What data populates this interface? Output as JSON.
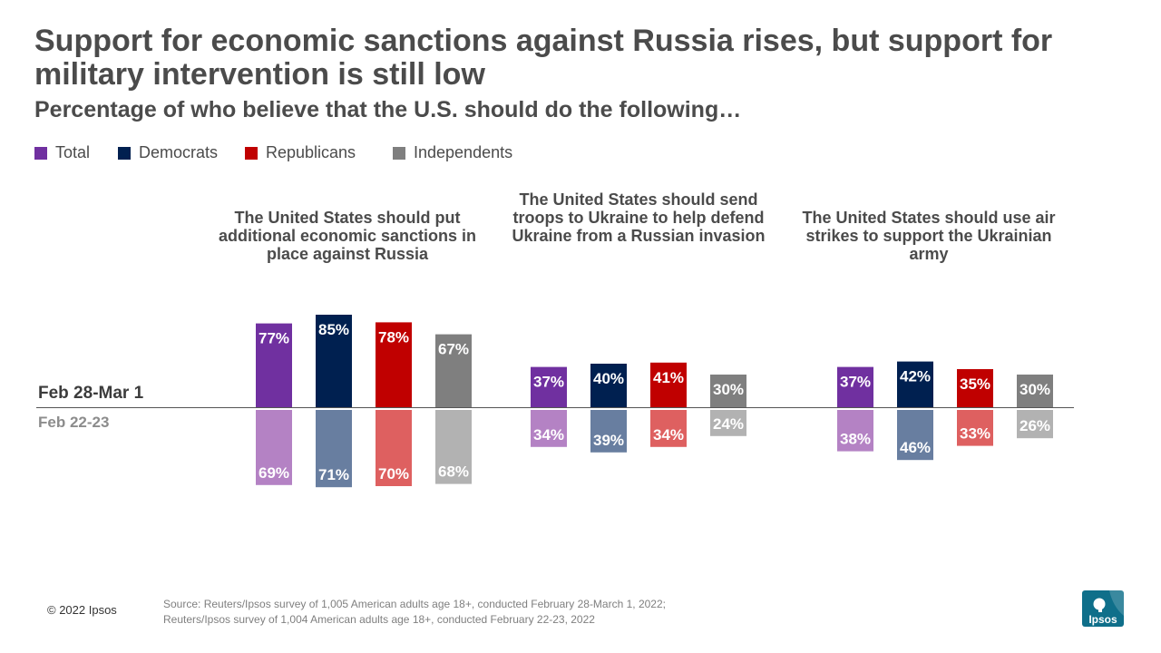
{
  "title": "Support for economic sanctions against Russia rises, but support for military intervention is still low",
  "subtitle": "Percentage of who believe that the U.S. should do the following…",
  "legend": [
    {
      "label": "Total",
      "color": "#7030a0"
    },
    {
      "label": "Democrats",
      "color": "#002050"
    },
    {
      "label": "Republicans",
      "color": "#c00000"
    },
    {
      "label": "Independents",
      "color": "#7f7f7f"
    }
  ],
  "periods": {
    "current": "Feb 28-Mar 1",
    "previous": "Feb 22-23"
  },
  "chart_data": {
    "type": "bar",
    "title": "Support for economic sanctions against Russia rises, but support for military intervention is still low",
    "subtitle": "Percentage of who believe that the U.S. should do the following…",
    "value_suffix": "%",
    "series_names": [
      "Total",
      "Democrats",
      "Republicans",
      "Independents"
    ],
    "colors_current": [
      "#7030a0",
      "#002050",
      "#c00000",
      "#7f7f7f"
    ],
    "colors_previous": [
      "#b482c4",
      "#687ea0",
      "#de6060",
      "#b2b2b2"
    ],
    "groups": [
      {
        "label": "The United States should put additional economic sanctions in place against Russia",
        "current": [
          77,
          85,
          78,
          67
        ],
        "previous": [
          69,
          71,
          70,
          68
        ]
      },
      {
        "label": "The United States should send troops to Ukraine to help defend Ukraine from a Russian invasion",
        "current": [
          37,
          40,
          41,
          30
        ],
        "previous": [
          34,
          39,
          34,
          24
        ]
      },
      {
        "label": "The United States should use air strikes to support the Ukrainian army",
        "current": [
          37,
          42,
          35,
          30
        ],
        "previous": [
          38,
          46,
          33,
          26
        ]
      }
    ]
  },
  "footer": {
    "copyright": "© 2022 Ipsos",
    "source_line1": "Source: Reuters/Ipsos survey of 1,005 American adults age 18+, conducted February 28-March 1, 2022;",
    "source_line2": "Reuters/Ipsos survey of 1,004 American adults age 18+, conducted February 22-23, 2022"
  },
  "logo": {
    "text": "Ipsos",
    "color": "#0f6f8a"
  }
}
